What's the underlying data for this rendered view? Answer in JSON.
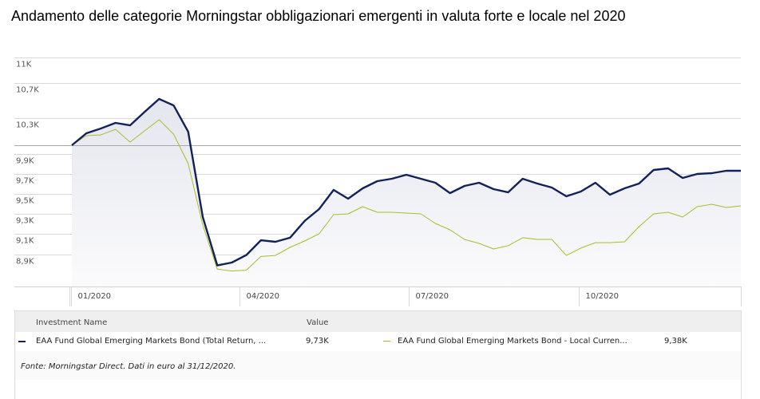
{
  "title": "Andamento delle categorie Morningstar obbligazionari emergenti in valuta forte e locale nel 2020",
  "chart_data": {
    "type": "line",
    "title": "Andamento delle categorie Morningstar obbligazionari emergenti in valuta forte e locale nel 2020",
    "xlabel": "",
    "ylabel": "",
    "y_scale": "log",
    "ylim": [
      8600,
      11000
    ],
    "baseline": 10000,
    "y_ticks": [
      11000,
      10700,
      10300,
      9900,
      9700,
      9500,
      9300,
      9100,
      8900
    ],
    "y_tick_labels": [
      "11K",
      "10,7K",
      "10,3K",
      "9,9K",
      "9,7K",
      "9,5K",
      "9,3K",
      "9,1K",
      "8,9K"
    ],
    "x_ticks": [
      {
        "label": "01/2020",
        "week": 0
      },
      {
        "label": "04/2020",
        "week": 11.6
      },
      {
        "label": "07/2020",
        "week": 23.2
      },
      {
        "label": "10/2020",
        "week": 34.9
      }
    ],
    "x_range_weeks": [
      0,
      46
    ],
    "series": [
      {
        "name": "EAA Fund Global Emerging Markets Bond (Total Return, ...",
        "color": "#13215a",
        "values": [
          10000,
          10132,
          10185,
          10247,
          10220,
          10370,
          10518,
          10445,
          10150,
          9268,
          8723,
          8769,
          8892,
          9038,
          9023,
          9062,
          9228,
          9348,
          9540,
          9452,
          9556,
          9628,
          9652,
          9692,
          9652,
          9612,
          9508,
          9580,
          9612,
          9548,
          9516,
          9652,
          9604,
          9564,
          9476,
          9524,
          9612,
          9492,
          9556,
          9604,
          9740,
          9756,
          9660,
          9700,
          9708,
          9732,
          9732
        ]
      },
      {
        "name": "EAA Fund Global Emerging Markets Bond - Local Curren...",
        "color": "#a8bd2a",
        "values": [
          10000,
          10106,
          10115,
          10176,
          10035,
          10159,
          10282,
          10123,
          9804,
          9188,
          8661,
          8631,
          8646,
          8869,
          8885,
          8969,
          9031,
          9100,
          9292,
          9300,
          9372,
          9316,
          9316,
          9308,
          9300,
          9204,
          9140,
          9046,
          9008,
          8954,
          8985,
          9062,
          9046,
          9046,
          8885,
          8962,
          9015,
          9015,
          9023,
          9172,
          9300,
          9316,
          9268,
          9372,
          9396,
          9364,
          9380
        ]
      }
    ]
  },
  "legend": {
    "col_name": "Investment Name",
    "col_value": "Value",
    "items": [
      {
        "name": "EAA Fund Global Emerging Markets Bond (Total Return, ...",
        "value": "9,73K",
        "color": "#13215a"
      },
      {
        "name": "EAA Fund Global Emerging Markets Bond - Local Curren...",
        "value": "9,38K",
        "color": "#a8bd2a"
      }
    ],
    "footnote": "Fonte: Morningstar Direct. Dati in euro al 31/12/2020."
  }
}
